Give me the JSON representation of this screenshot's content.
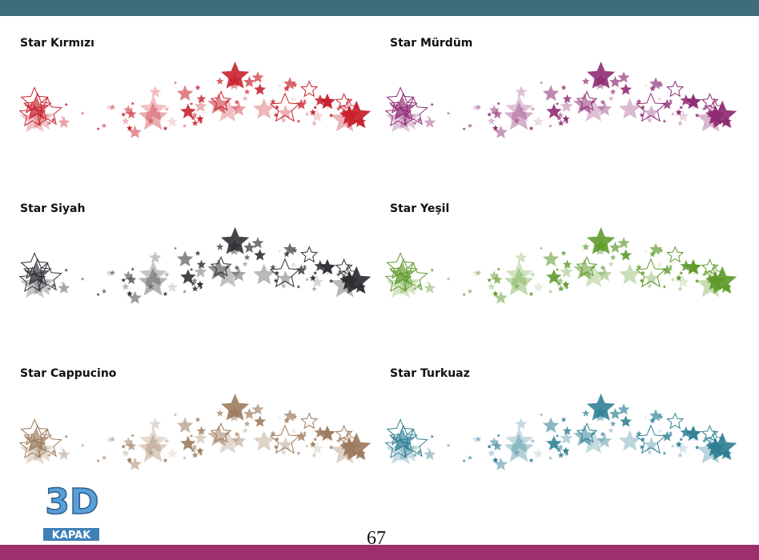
{
  "items": [
    {
      "title": "Star Kırmızı",
      "color": "#c8202c"
    },
    {
      "title": "Star Mürdüm",
      "color": "#8e2a72"
    },
    {
      "title": "Star Siyah",
      "color": "#2e2e33"
    },
    {
      "title": "Star Yeşil",
      "color": "#5f9a2a"
    },
    {
      "title": "Star Cappucino",
      "color": "#9c7a5c"
    },
    {
      "title": "Star Turkuaz",
      "color": "#2f7f94"
    }
  ],
  "logo": {
    "mark": "3D",
    "text": "KAPAK"
  },
  "page_number": "67"
}
